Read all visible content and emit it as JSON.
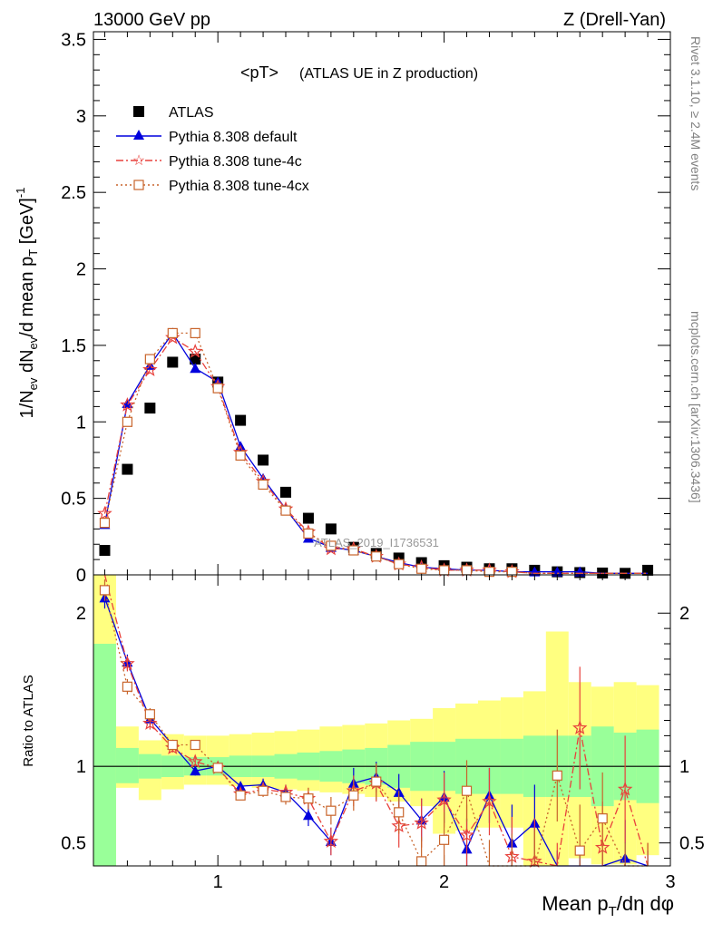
{
  "header": {
    "left": "13000 GeV pp",
    "right": "Z (Drell-Yan)"
  },
  "side_texts": {
    "rivet": "Rivet 3.1.10, ≥ 2.4M events",
    "mcplots": "mcplots.cern.ch [arXiv:1306.3436]"
  },
  "colors": {
    "atlas": "#000000",
    "default": "#0000dd",
    "tune4c": "#e8413c",
    "tune4cx": "#c8642b",
    "band_inner": "#99ff99",
    "band_outer": "#ffff80"
  },
  "chart_data": [
    {
      "type": "scatter",
      "panel": "main",
      "title": "<pT> (ATLAS UE in Z production)",
      "title_main": "<pT>",
      "title_note": "(ATLAS UE in Z production)",
      "watermark": "ATLAS_2019_I1736531",
      "ylabel": "1/N_ev dN_ev/d mean p_T [GeV]^-1",
      "xlim": [
        0.45,
        3.0
      ],
      "ylim": [
        0,
        3.55
      ],
      "yticks": [
        0,
        0.5,
        1,
        1.5,
        2,
        2.5,
        3,
        3.5
      ],
      "ytick_labels": [
        "0",
        "0.5",
        "1",
        "1.5",
        "2",
        "2.5",
        "3",
        "3.5"
      ],
      "x": [
        0.5,
        0.6,
        0.7,
        0.8,
        0.9,
        1.0,
        1.1,
        1.2,
        1.3,
        1.4,
        1.5,
        1.6,
        1.7,
        1.8,
        1.9,
        2.0,
        2.1,
        2.2,
        2.3,
        2.4,
        2.5,
        2.6,
        2.7,
        2.8,
        2.9
      ],
      "series": [
        {
          "name": "ATLAS",
          "key": "atlas",
          "values": [
            0.16,
            0.69,
            1.09,
            1.39,
            1.41,
            1.26,
            1.01,
            0.75,
            0.54,
            0.37,
            0.3,
            0.18,
            0.14,
            0.11,
            0.08,
            0.06,
            0.05,
            0.04,
            0.04,
            0.03,
            0.02,
            0.015,
            0.012,
            0.01,
            0.03
          ]
        },
        {
          "name": "Pythia 8.308 default",
          "key": "default",
          "values": [
            0.33,
            1.12,
            1.37,
            1.58,
            1.35,
            1.26,
            0.84,
            0.63,
            0.43,
            0.24,
            0.18,
            0.16,
            0.12,
            0.08,
            0.05,
            0.04,
            0.03,
            0.03,
            0.02,
            0.02,
            0.02,
            0.02,
            0.01,
            0.01,
            0.01
          ]
        },
        {
          "name": "Pythia 8.308 tune-4c",
          "key": "tune4c",
          "values": [
            0.4,
            1.11,
            1.34,
            1.55,
            1.46,
            1.23,
            0.8,
            0.61,
            0.43,
            0.28,
            0.17,
            0.17,
            0.12,
            0.07,
            0.05,
            0.03,
            0.03,
            0.03,
            0.02,
            0.01,
            0.01,
            0.01,
            0.01,
            0.01,
            0.01
          ]
        },
        {
          "name": "Pythia 8.308 tune-4cx",
          "key": "tune4cx",
          "values": [
            0.34,
            1.0,
            1.41,
            1.58,
            1.58,
            1.22,
            0.78,
            0.59,
            0.42,
            0.27,
            0.19,
            0.16,
            0.12,
            0.07,
            0.04,
            0.03,
            0.03,
            0.02,
            0.02,
            0.01,
            0.01,
            0.01,
            0.01,
            0.01,
            0.01
          ]
        }
      ]
    },
    {
      "type": "line",
      "panel": "ratio",
      "ylabel": "Ratio to ATLAS",
      "xlabel": "Mean p_T/dη dφ",
      "xlim": [
        0.45,
        3.0
      ],
      "ylim": [
        0.35,
        2.25
      ],
      "reference": 1.0,
      "xticks": [
        1,
        2,
        3
      ],
      "xtick_labels": [
        "1",
        "2",
        "3"
      ],
      "yticks": [
        0.5,
        1,
        2
      ],
      "ytick_labels": [
        "0.5",
        "1",
        "2"
      ],
      "x": [
        0.5,
        0.6,
        0.7,
        0.8,
        0.9,
        1.0,
        1.1,
        1.2,
        1.3,
        1.4,
        1.5,
        1.6,
        1.7,
        1.8,
        1.9,
        2.0,
        2.1,
        2.2,
        2.3,
        2.4,
        2.5,
        2.6,
        2.7,
        2.8,
        2.9
      ],
      "band_inner": {
        "lo": [
          0.35,
          0.89,
          0.92,
          0.93,
          0.94,
          0.94,
          0.93,
          0.93,
          0.92,
          0.91,
          0.9,
          0.89,
          0.88,
          0.86,
          0.84,
          0.84,
          0.82,
          0.82,
          0.82,
          0.8,
          0.8,
          0.8,
          0.74,
          0.78,
          0.76
        ],
        "hi": [
          1.8,
          1.12,
          1.08,
          1.07,
          1.06,
          1.06,
          1.07,
          1.07,
          1.08,
          1.09,
          1.1,
          1.11,
          1.12,
          1.14,
          1.16,
          1.16,
          1.18,
          1.18,
          1.18,
          1.2,
          1.2,
          1.2,
          1.26,
          1.22,
          1.24
        ]
      },
      "band_outer": {
        "lo": [
          0.35,
          0.86,
          0.78,
          0.85,
          0.88,
          0.88,
          0.87,
          0.86,
          0.85,
          0.84,
          0.83,
          0.82,
          0.8,
          0.77,
          0.74,
          0.56,
          0.58,
          0.6,
          0.6,
          0.35,
          0.35,
          0.4,
          0.36,
          0.36,
          0.42
        ],
        "hi": [
          2.25,
          1.26,
          1.17,
          1.21,
          1.2,
          1.2,
          1.21,
          1.22,
          1.23,
          1.24,
          1.26,
          1.27,
          1.28,
          1.3,
          1.31,
          1.38,
          1.41,
          1.43,
          1.45,
          1.49,
          1.88,
          1.55,
          1.52,
          1.55,
          1.53
        ]
      },
      "series": [
        {
          "name": "Pythia 8.308 default",
          "key": "default",
          "values": [
            2.1,
            1.68,
            1.31,
            1.14,
            0.97,
            1.0,
            0.87,
            0.88,
            0.83,
            0.68,
            0.51,
            0.89,
            0.93,
            0.83,
            0.65,
            0.8,
            0.46,
            0.81,
            0.5,
            0.63,
            0.3,
            0.3,
            0.3,
            0.4,
            0.3
          ],
          "errors": [
            0.07,
            0.05,
            0.04,
            0.03,
            0.03,
            0.03,
            0.03,
            0.04,
            0.05,
            0.07,
            0.09,
            0.1,
            0.1,
            0.12,
            0.14,
            0.17,
            0.2,
            0.18,
            0.25,
            0.25,
            0.15,
            0.15,
            0.15,
            0.25,
            0.15
          ]
        },
        {
          "name": "Pythia 8.308 tune-4c",
          "key": "tune4c",
          "values": [
            2.4,
            1.67,
            1.28,
            1.12,
            1.03,
            0.99,
            0.82,
            0.85,
            0.83,
            0.79,
            0.51,
            0.84,
            0.89,
            0.61,
            0.63,
            0.78,
            0.55,
            0.77,
            0.41,
            0.38,
            0.3,
            1.25,
            0.47,
            0.85,
            0.3
          ],
          "errors": [
            0.08,
            0.05,
            0.04,
            0.03,
            0.03,
            0.03,
            0.03,
            0.04,
            0.05,
            0.07,
            0.09,
            0.1,
            0.12,
            0.14,
            0.16,
            0.18,
            0.2,
            0.22,
            0.26,
            0.28,
            0.2,
            0.4,
            0.3,
            0.35,
            0.2
          ]
        },
        {
          "name": "Pythia 8.308 tune-4cx",
          "key": "tune4cx",
          "values": [
            2.15,
            1.52,
            1.34,
            1.14,
            1.14,
            0.99,
            0.81,
            0.84,
            0.8,
            0.79,
            0.71,
            0.81,
            0.9,
            0.7,
            0.38,
            0.52,
            0.84,
            0.3,
            0.3,
            0.3,
            0.94,
            0.45,
            0.66,
            0.3,
            0.3
          ],
          "errors": [
            0.07,
            0.05,
            0.04,
            0.03,
            0.03,
            0.03,
            0.03,
            0.04,
            0.05,
            0.07,
            0.09,
            0.1,
            0.12,
            0.14,
            0.16,
            0.18,
            0.2,
            0.22,
            0.26,
            0.28,
            0.3,
            0.3,
            0.3,
            0.2,
            0.2
          ]
        }
      ]
    }
  ]
}
